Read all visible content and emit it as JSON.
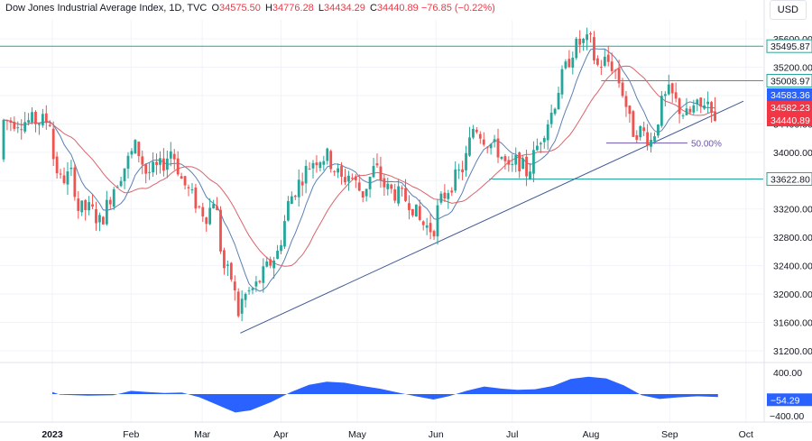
{
  "header": {
    "title": "Dow Jones Industrial Average Index, 1D, TVC",
    "open_label": "O",
    "open": "34575.50",
    "high_label": "H",
    "high": "34776.28",
    "low_label": "L",
    "low": "34434.29",
    "close_label": "C",
    "close": "34440.89",
    "change": "−76.85 (−0.22%)"
  },
  "currency": "USD",
  "chart_data": {
    "type": "candlestick",
    "price_axis": {
      "range": [
        30950,
        35750
      ],
      "ticks": [
        31200,
        31600,
        32000,
        32400,
        32800,
        33200,
        33600,
        34000,
        34400,
        34800,
        35200,
        35600
      ],
      "tick_labels": [
        "31200.00",
        "31600.00",
        "32000.00",
        "32400.00",
        "32800.00",
        "33200.00",
        "33600.00",
        "34000.00",
        "34400.00",
        "34800.00",
        "35200.00",
        "35600.00"
      ]
    },
    "time_axis": {
      "labels": [
        {
          "text": "2023",
          "date": "2023-01-01",
          "bold": true
        },
        {
          "text": "Feb",
          "date": "2023-02-01"
        },
        {
          "text": "Mar",
          "date": "2023-03-01"
        },
        {
          "text": "Apr",
          "date": "2023-04-01"
        },
        {
          "text": "May",
          "date": "2023-05-01"
        },
        {
          "text": "Jun",
          "date": "2023-06-01"
        },
        {
          "text": "Jul",
          "date": "2023-07-01"
        },
        {
          "text": "Aug",
          "date": "2023-08-01"
        },
        {
          "text": "Sep",
          "date": "2023-09-01"
        },
        {
          "text": "Oct",
          "date": "2023-10-01"
        }
      ]
    },
    "moving_averages": [
      {
        "color": "#5b7fb5"
      },
      {
        "color": "#d9646b"
      }
    ],
    "horizontal_lines": [
      {
        "price": 35495.87,
        "label": "35495.87"
      },
      {
        "price": 35008.97,
        "label": "35008.97"
      },
      {
        "price": 33622.8,
        "label": "33622.80"
      }
    ],
    "trendline": {
      "from": {
        "date": "2023-03-16",
        "price": 31450
      },
      "to": {
        "date": "2023-09-30",
        "price": 34720
      }
    },
    "fib_level": {
      "price": 34130,
      "label": "50.00%",
      "from_date": "2023-08-07",
      "to_date": "2023-09-03"
    },
    "price_badges": [
      {
        "price": 34583.36,
        "label": "34583.36",
        "color": "#2962ff"
      },
      {
        "price": 34582.23,
        "label": "34582.23",
        "color": "#f23645"
      },
      {
        "price": 34440.89,
        "label": "34440.89",
        "color": "#f23645"
      }
    ],
    "oscillator": {
      "range": [
        -600,
        600
      ],
      "ticks": [
        400,
        -400
      ],
      "tick_labels": [
        "400.00",
        "−400.00"
      ],
      "last_value": "−54.29",
      "color": "#2962ff"
    }
  }
}
